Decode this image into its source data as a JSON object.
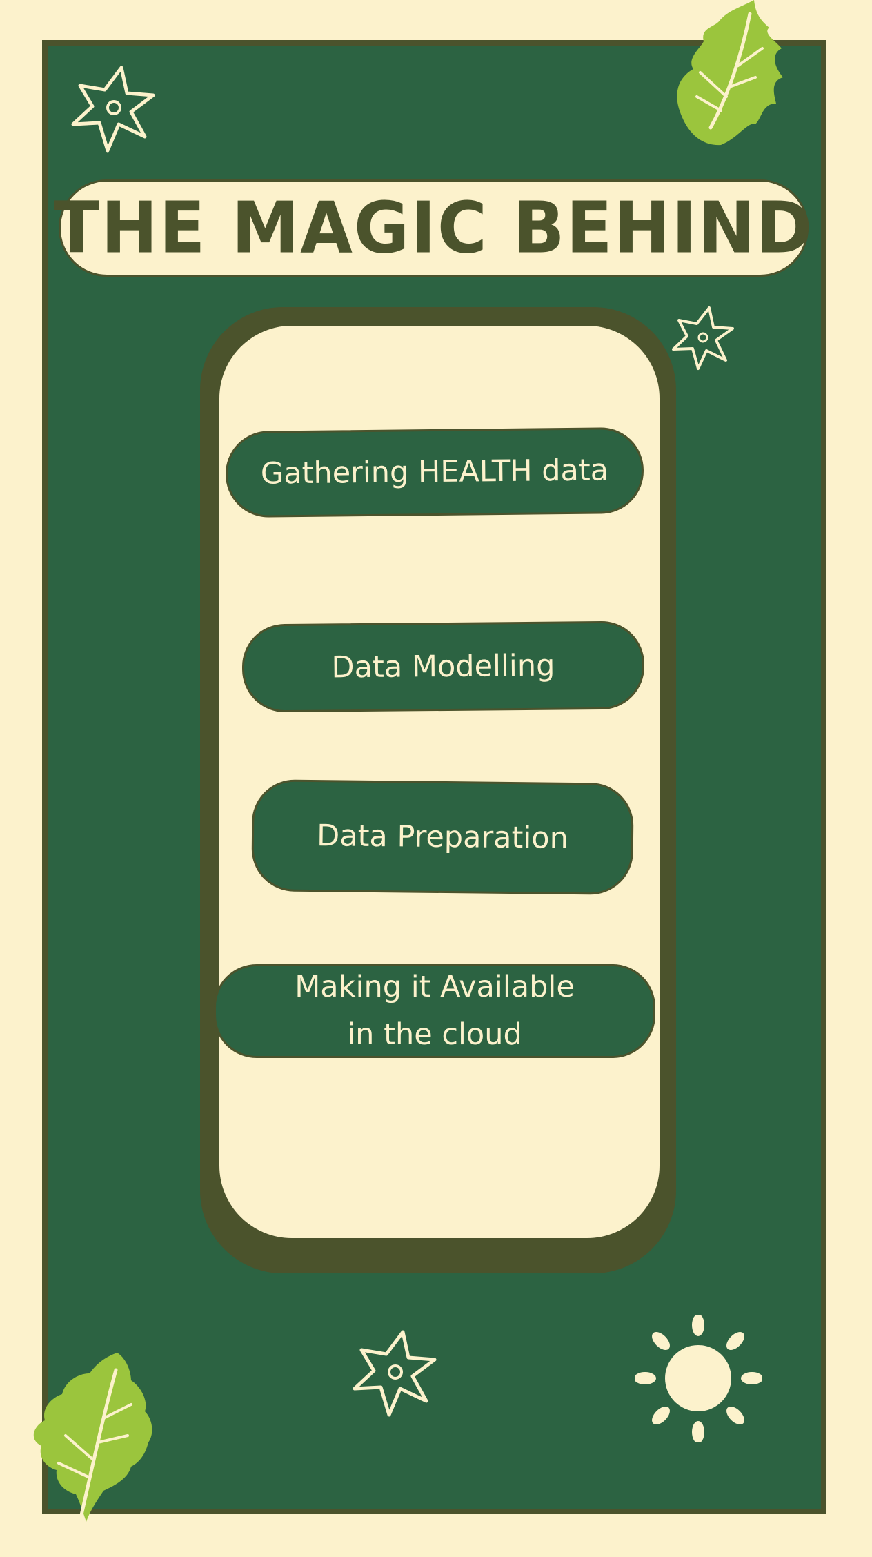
{
  "title": "THE MAGIC BEHIND",
  "steps": [
    {
      "label": "Gathering HEALTH data"
    },
    {
      "label": "Data Modelling"
    },
    {
      "label": "Data  Preparation"
    },
    {
      "label": "Making it Available\nin the cloud"
    }
  ],
  "colors": {
    "background": "#fcf2cc",
    "frame": "#2c6342",
    "outline": "#4b532c",
    "leaf": "#9bc53d"
  },
  "icons": [
    "star-flower-icon",
    "leaf-icon",
    "sun-icon"
  ]
}
